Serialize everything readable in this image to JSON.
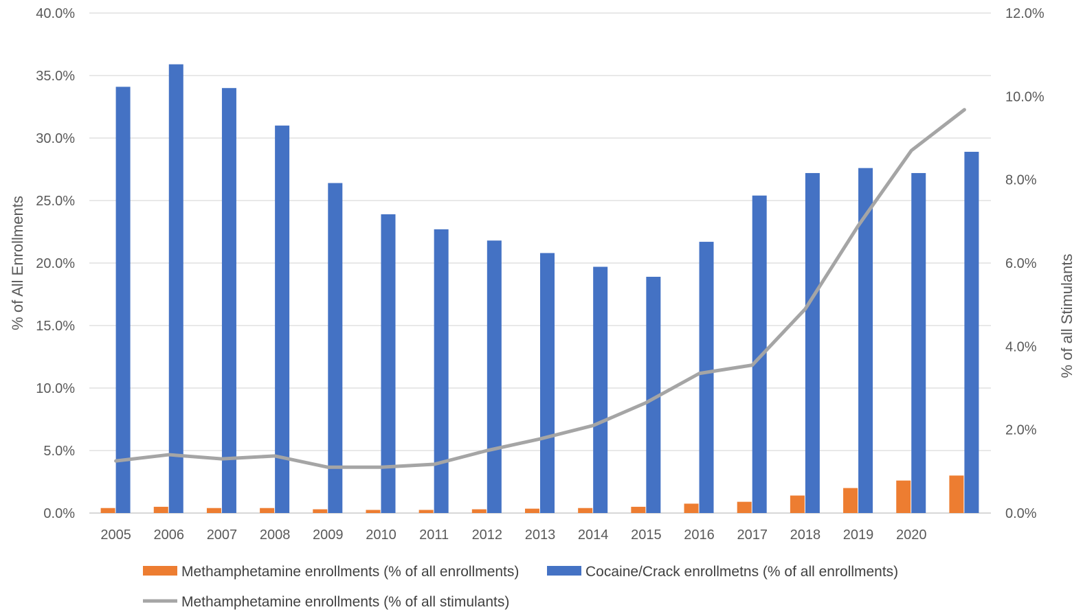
{
  "chart_data": {
    "type": "bar",
    "categories": [
      "2005",
      "2006",
      "2007",
      "2008",
      "2009",
      "2010",
      "2011",
      "2012",
      "2013",
      "2014",
      "2015",
      "2016",
      "2017",
      "2018",
      "2019",
      "2020",
      ""
    ],
    "ylabel": "% of All Enrollments",
    "y2label": "% of all Stimulants",
    "ylim": [
      0,
      40
    ],
    "y2lim": [
      0,
      12
    ],
    "yticks": [
      "0.0%",
      "5.0%",
      "10.0%",
      "15.0%",
      "20.0%",
      "25.0%",
      "30.0%",
      "35.0%",
      "40.0%"
    ],
    "y2ticks": [
      "0.0%",
      "2.0%",
      "4.0%",
      "6.0%",
      "8.0%",
      "10.0%",
      "12.0%"
    ],
    "grid": true,
    "legend_position": "bottom",
    "series": [
      {
        "name": "Methamphetamine enrollments (% of all enrollments)",
        "type": "bar",
        "axis": "left",
        "color": "#ED7D31",
        "values": [
          0.4,
          0.5,
          0.4,
          0.4,
          0.3,
          0.25,
          0.25,
          0.3,
          0.35,
          0.4,
          0.5,
          0.75,
          0.9,
          1.4,
          2.0,
          2.6,
          3.0
        ]
      },
      {
        "name": "Cocaine/Crack enrollmetns (% of all enrollments)",
        "type": "bar",
        "axis": "left",
        "color": "#4472C4",
        "values": [
          34.1,
          35.9,
          34.0,
          31.0,
          26.4,
          23.9,
          22.7,
          21.8,
          20.8,
          19.7,
          18.9,
          21.7,
          25.4,
          27.2,
          27.6,
          27.2,
          28.9
        ]
      },
      {
        "name": "Methamphetamine enrollments (% of all stimulants)",
        "type": "line",
        "axis": "right",
        "color": "#A5A5A5",
        "values": [
          1.25,
          1.4,
          1.3,
          1.37,
          1.1,
          1.1,
          1.17,
          1.5,
          1.78,
          2.1,
          2.65,
          3.35,
          3.55,
          4.9,
          6.9,
          8.7,
          9.68
        ]
      }
    ]
  }
}
